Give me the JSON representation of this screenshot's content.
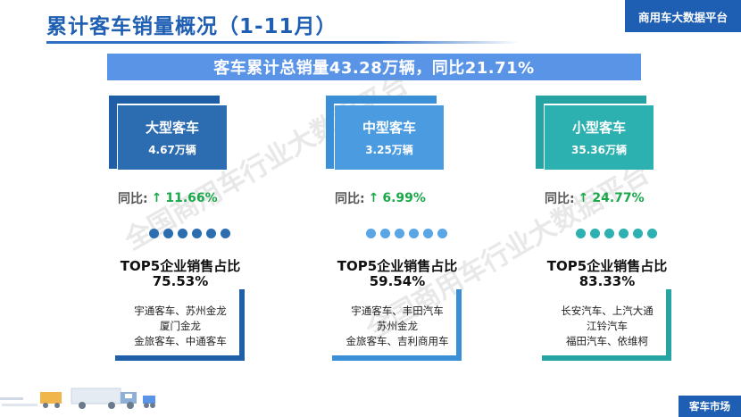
{
  "header": {
    "title": "累计客车销量概况（1-11月）",
    "brand": "商用车大数据平台"
  },
  "banner": "客车累计总销量43.28万辆，同比21.71%",
  "columns": [
    {
      "name": "大型客车",
      "volume": "4.67万辆",
      "yoy_label": "同比:",
      "yoy_arrow": "↑",
      "yoy_value": "11.66%",
      "top5_title": "TOP5企业销售占比",
      "top5_pct": "75.53%",
      "top5_lines": [
        "宇通客车、苏州金龙",
        "厦门金龙",
        "金旅客车、中通客车"
      ]
    },
    {
      "name": "中型客车",
      "volume": "3.25万辆",
      "yoy_label": "同比:",
      "yoy_arrow": "↑",
      "yoy_value": "6.99%",
      "top5_title": "TOP5企业销售占比",
      "top5_pct": "59.54%",
      "top5_lines": [
        "宇通客车、丰田汽车",
        "苏州金龙",
        "金旅客车、吉利商用车"
      ]
    },
    {
      "name": "小型客车",
      "volume": "35.36万辆",
      "yoy_label": "同比:",
      "yoy_arrow": "↑",
      "yoy_value": "24.77%",
      "top5_title": "TOP5企业销售占比",
      "top5_pct": "83.33%",
      "top5_lines": [
        "长安汽车、上汽大通",
        "江铃汽车",
        "福田汽车、依维柯"
      ]
    }
  ],
  "watermark": "全国商用车行业大数据平台",
  "footer_tag": "客车市场",
  "colors": {
    "primary": "#1f5fb3",
    "banner": "#5a94e6",
    "large": "#2c6cb0",
    "medium": "#4a9be0",
    "small": "#2cb0b0",
    "growth": "#19a84a"
  }
}
